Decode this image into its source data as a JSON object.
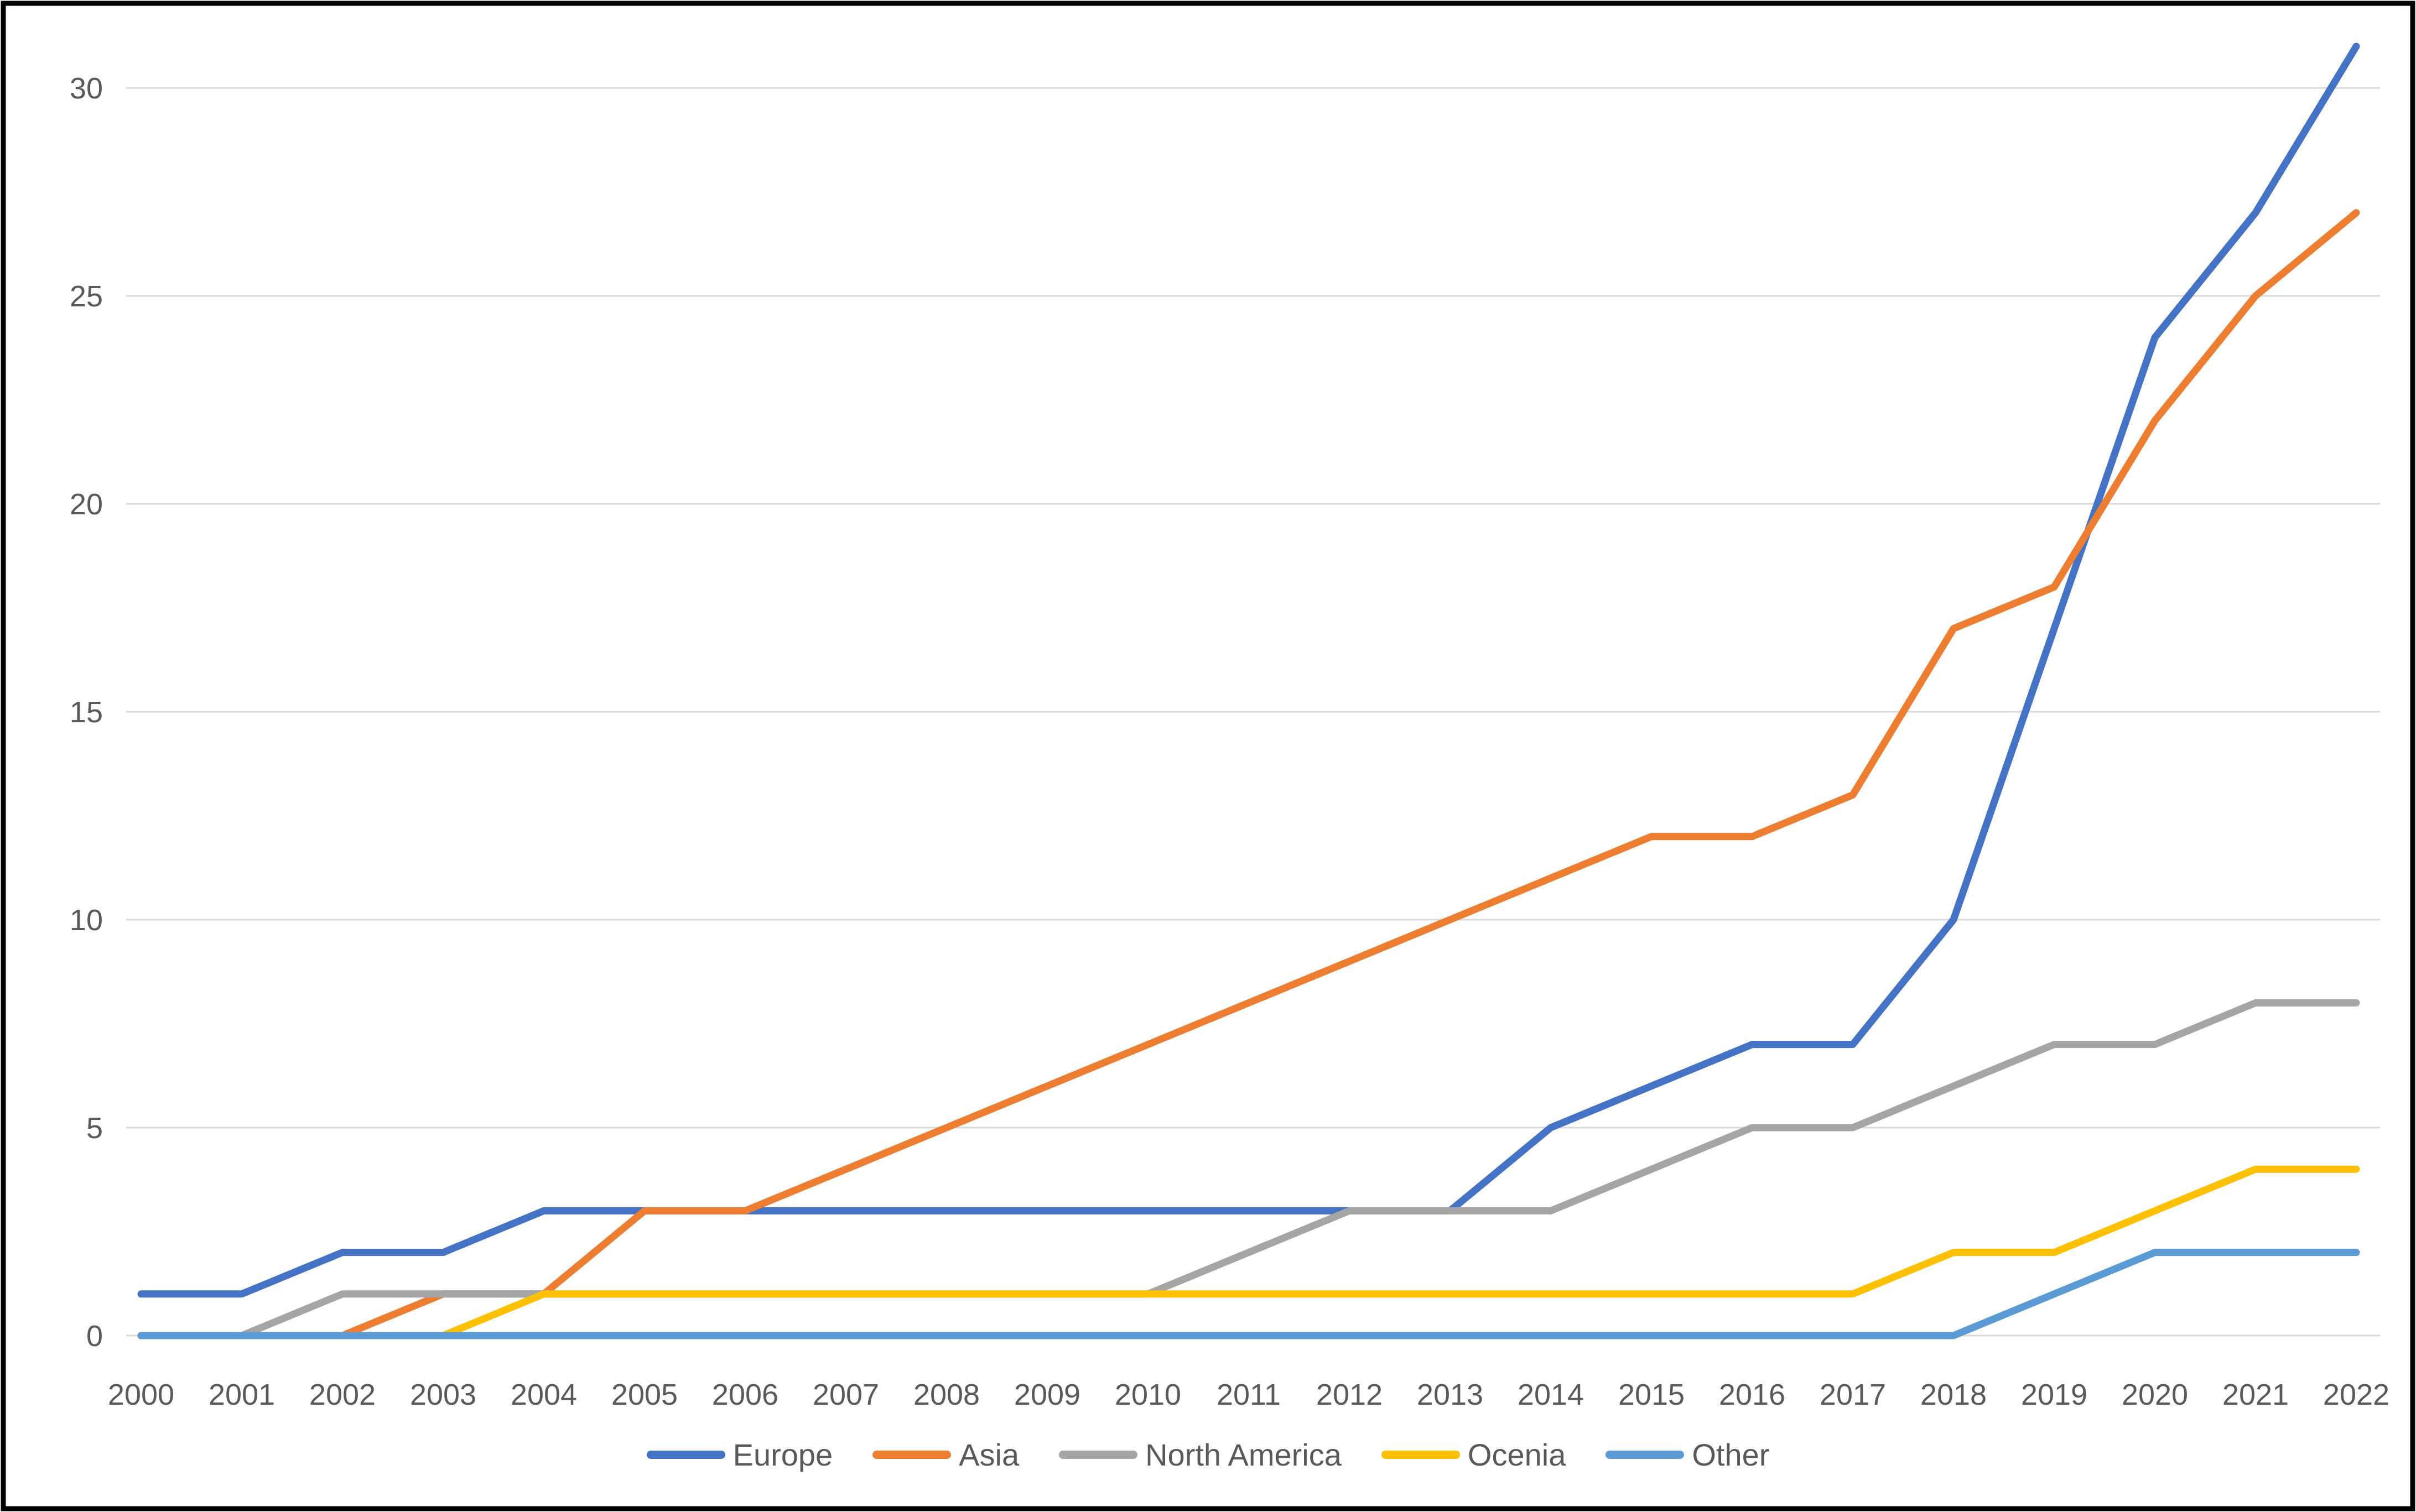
{
  "chart": {
    "background_color": "#FFFFFF",
    "border_color": "#000000",
    "gridline_color": "#D9D9D9",
    "axis_label_color": "#595959",
    "legend_position": "bottom"
  },
  "chart_data": {
    "type": "line",
    "title": "",
    "xlabel": "",
    "ylabel": "",
    "x": [
      2000,
      2001,
      2002,
      2003,
      2004,
      2005,
      2006,
      2007,
      2008,
      2009,
      2010,
      2011,
      2012,
      2013,
      2014,
      2015,
      2016,
      2017,
      2018,
      2019,
      2020,
      2021,
      2022
    ],
    "yticks": [
      0,
      5,
      10,
      15,
      20,
      25,
      30
    ],
    "ylim": [
      0,
      31
    ],
    "grid": "horizontal",
    "legend_position": "bottom",
    "series": [
      {
        "name": "Europe",
        "color": "#4472C4",
        "values": [
          1,
          1,
          2,
          2,
          3,
          3,
          3,
          3,
          3,
          3,
          3,
          3,
          3,
          3,
          5,
          6,
          7,
          7,
          10,
          17,
          24,
          27,
          31
        ]
      },
      {
        "name": "Asia",
        "color": "#ED7D31",
        "values": [
          0,
          0,
          0,
          1,
          1,
          3,
          3,
          4,
          5,
          6,
          7,
          8,
          9,
          10,
          11,
          12,
          12,
          13,
          17,
          18,
          22,
          25,
          27
        ]
      },
      {
        "name": "North America",
        "color": "#A5A5A5",
        "values": [
          0,
          0,
          1,
          1,
          1,
          1,
          1,
          1,
          1,
          1,
          1,
          2,
          3,
          3,
          3,
          4,
          5,
          5,
          6,
          7,
          7,
          8,
          8
        ]
      },
      {
        "name": "Ocenia",
        "color": "#FFC000",
        "values": [
          0,
          0,
          0,
          0,
          1,
          1,
          1,
          1,
          1,
          1,
          1,
          1,
          1,
          1,
          1,
          1,
          1,
          1,
          2,
          2,
          3,
          4,
          4
        ]
      },
      {
        "name": "Other",
        "color": "#5B9BD5",
        "values": [
          0,
          0,
          0,
          0,
          0,
          0,
          0,
          0,
          0,
          0,
          0,
          0,
          0,
          0,
          0,
          0,
          0,
          0,
          0,
          1,
          2,
          2,
          2
        ]
      }
    ]
  }
}
